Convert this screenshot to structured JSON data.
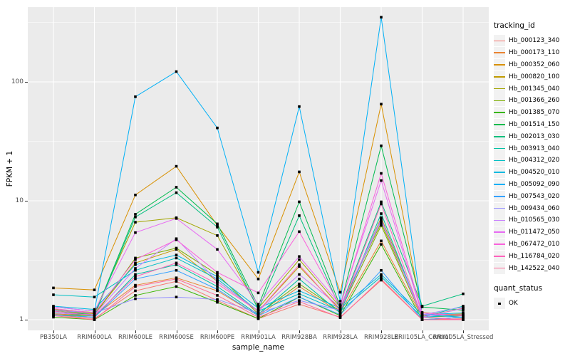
{
  "chart_data": {
    "type": "line",
    "xlabel": "sample_name",
    "ylabel": "FPKM + 1",
    "y_scale": "log10",
    "grid": true,
    "legend_position": "right",
    "x_categories": [
      "PB350LA",
      "RRIM600LA",
      "RRIM600LE",
      "RRIM600SE",
      "RRIM600PE",
      "RRIM901LA",
      "RRIM928BA",
      "RRIM928LA",
      "RRIM928LE",
      "RRII105LA_Control",
      "RRII105LA_Stressed"
    ],
    "y_ticks": [
      {
        "label": "1",
        "value": 1
      },
      {
        "label": "10",
        "value": 10
      },
      {
        "label": "100",
        "value": 100
      }
    ],
    "y_minor": [
      3.162,
      31.62,
      316.2
    ],
    "ylim": [
      0.88,
      430
    ],
    "legends": {
      "color": {
        "title": "tracking_id"
      },
      "shape": {
        "title": "quant_status",
        "items": [
          {
            "label": "OK",
            "shape": "square",
            "color": "#000000"
          }
        ]
      }
    },
    "point_color": "#000000",
    "series": [
      {
        "name": "Hb_000123_340",
        "color": "#F8766D",
        "values": [
          1.1,
          1.02,
          1.75,
          2.1,
          1.45,
          1.02,
          1.35,
          1.05,
          2.15,
          1.0,
          1.02
        ]
      },
      {
        "name": "Hb_000173_110",
        "color": "#EA8331",
        "values": [
          1.12,
          1.08,
          1.95,
          2.25,
          1.75,
          1.08,
          1.9,
          1.15,
          4.6,
          1.05,
          1.25
        ]
      },
      {
        "name": "Hb_000352_060",
        "color": "#D89000",
        "values": [
          1.85,
          1.78,
          11.2,
          19.5,
          6.2,
          2.2,
          17.5,
          1.7,
          65.0,
          1.15,
          1.08
        ]
      },
      {
        "name": "Hb_000820_100",
        "color": "#C09B00",
        "values": [
          1.2,
          1.12,
          3.0,
          3.9,
          2.1,
          1.18,
          2.8,
          1.22,
          7.2,
          1.08,
          1.12
        ]
      },
      {
        "name": "Hb_001345_040",
        "color": "#A3A500",
        "values": [
          1.22,
          1.15,
          6.6,
          7.2,
          5.1,
          1.25,
          3.2,
          1.28,
          6.5,
          1.1,
          1.1
        ]
      },
      {
        "name": "Hb_001366_260",
        "color": "#7CAE00",
        "values": [
          1.1,
          1.08,
          3.3,
          4.0,
          2.4,
          1.12,
          2.0,
          1.18,
          6.2,
          1.05,
          1.08
        ]
      },
      {
        "name": "Hb_001385_070",
        "color": "#39B600",
        "values": [
          1.05,
          1.0,
          1.6,
          1.9,
          1.4,
          1.02,
          1.55,
          1.08,
          4.3,
          1.0,
          1.05
        ]
      },
      {
        "name": "Hb_001514_150",
        "color": "#00BB4E",
        "values": [
          1.18,
          1.1,
          7.7,
          13.0,
          6.4,
          1.3,
          9.8,
          1.3,
          29.0,
          1.28,
          1.2
        ]
      },
      {
        "name": "Hb_002013_030",
        "color": "#00BF7D",
        "values": [
          1.15,
          1.08,
          7.3,
          11.7,
          6.0,
          1.22,
          7.5,
          1.24,
          9.8,
          1.3,
          1.65
        ]
      },
      {
        "name": "Hb_003913_040",
        "color": "#00C1A3",
        "values": [
          1.1,
          1.05,
          2.4,
          2.9,
          1.9,
          1.1,
          2.2,
          1.14,
          7.8,
          1.05,
          1.3
        ]
      },
      {
        "name": "Hb_004312_020",
        "color": "#00BFC4",
        "values": [
          1.62,
          1.55,
          2.6,
          3.3,
          2.2,
          1.18,
          1.65,
          1.18,
          2.3,
          1.05,
          1.1
        ]
      },
      {
        "name": "Hb_004520_010",
        "color": "#00BAE0",
        "values": [
          1.3,
          1.22,
          2.9,
          3.5,
          2.3,
          1.25,
          1.75,
          1.25,
          2.4,
          1.1,
          1.14
        ]
      },
      {
        "name": "Hb_005092_090",
        "color": "#00B0F6",
        "values": [
          1.28,
          1.18,
          75.0,
          122.0,
          41.0,
          2.5,
          62.0,
          1.43,
          350.0,
          1.1,
          1.05
        ]
      },
      {
        "name": "Hb_007543_020",
        "color": "#35A2FF",
        "values": [
          1.1,
          1.05,
          2.2,
          2.6,
          1.8,
          1.08,
          1.55,
          1.1,
          2.6,
          1.0,
          1.05
        ]
      },
      {
        "name": "Hb_009434_060",
        "color": "#9590FF",
        "values": [
          1.2,
          1.14,
          1.5,
          1.55,
          1.48,
          1.14,
          1.45,
          1.2,
          6.8,
          1.1,
          1.28
        ]
      },
      {
        "name": "Hb_010565_030",
        "color": "#C77CFF",
        "values": [
          1.14,
          1.1,
          2.7,
          4.8,
          2.1,
          1.18,
          2.4,
          1.28,
          7.0,
          1.05,
          1.24
        ]
      },
      {
        "name": "Hb_011472_050",
        "color": "#E76BF3",
        "values": [
          1.28,
          1.18,
          5.4,
          7.1,
          3.9,
          1.35,
          3.4,
          1.34,
          14.8,
          1.1,
          1.1
        ]
      },
      {
        "name": "Hb_067472_010",
        "color": "#FA62DB",
        "values": [
          1.24,
          1.14,
          3.2,
          4.7,
          2.5,
          1.68,
          5.5,
          1.3,
          17.0,
          1.14,
          1.08
        ]
      },
      {
        "name": "Hb_116784_020",
        "color": "#FF62BC",
        "values": [
          1.18,
          1.08,
          2.3,
          3.0,
          2.0,
          1.18,
          2.9,
          1.18,
          9.4,
          1.05,
          1.0
        ]
      },
      {
        "name": "Hb_142522_040",
        "color": "#FF6A98",
        "values": [
          1.08,
          1.0,
          1.9,
          2.2,
          1.6,
          1.05,
          1.42,
          1.04,
          2.2,
          1.0,
          1.0
        ]
      }
    ]
  },
  "panel": {
    "background": "#EBEBEB",
    "gridline_color": "#FFFFFF",
    "tick_color": "#333333",
    "tick_label_color": "#4D4D4D",
    "legend_key_background": "#F2F2F2"
  }
}
